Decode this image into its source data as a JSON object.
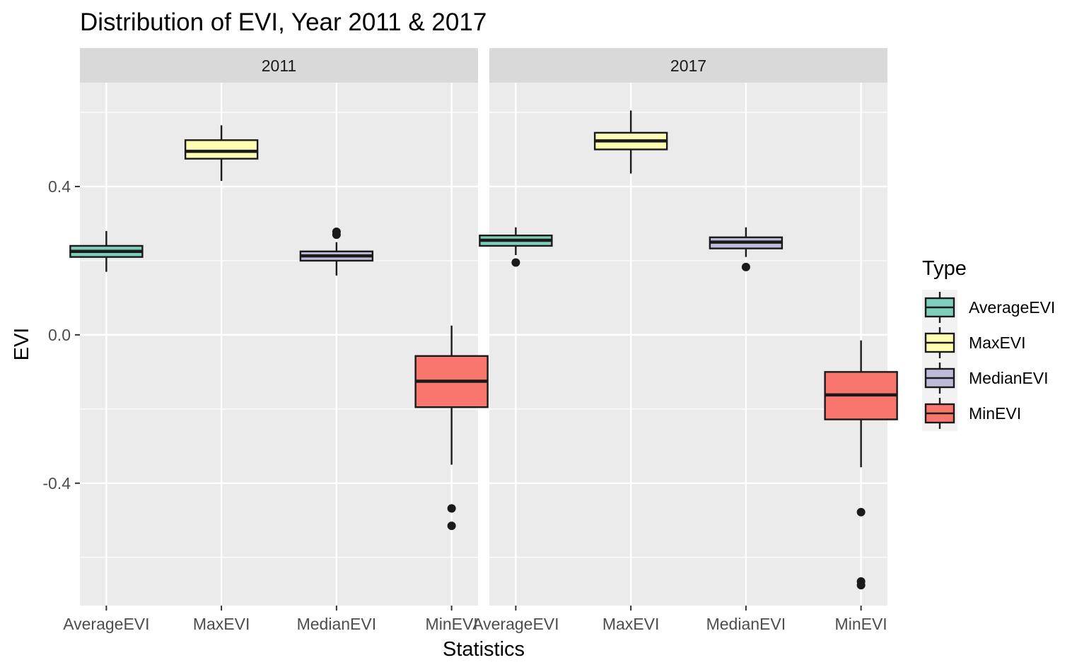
{
  "chart_data": {
    "type": "boxplot",
    "title": "Distribution of EVI, Year 2011 & 2017",
    "xlabel": "Statistics",
    "ylabel": "EVI",
    "ylim": [
      -0.73,
      0.68
    ],
    "yticks": [
      -0.4,
      0.0,
      0.4
    ],
    "ytick_labels": [
      "-0.4",
      "0.0",
      "0.4"
    ],
    "grid": true,
    "legend": {
      "title": "Type",
      "position": "right",
      "entries": [
        "AverageEVI",
        "MaxEVI",
        "MedianEVI",
        "MinEVI"
      ]
    },
    "categories": [
      "AverageEVI",
      "MaxEVI",
      "MedianEVI",
      "MinEVI"
    ],
    "colors": {
      "AverageEVI": "#7fcdbb",
      "MaxEVI": "#ffffb3",
      "MedianEVI": "#bebada",
      "MinEVI": "#f8766d"
    },
    "facets": [
      {
        "label": "2011",
        "boxes": [
          {
            "category": "AverageEVI",
            "lower_whisker": 0.17,
            "q1": 0.21,
            "median": 0.225,
            "q3": 0.24,
            "upper_whisker": 0.28,
            "outliers": []
          },
          {
            "category": "MaxEVI",
            "lower_whisker": 0.415,
            "q1": 0.475,
            "median": 0.495,
            "q3": 0.525,
            "upper_whisker": 0.565,
            "outliers": []
          },
          {
            "category": "MedianEVI",
            "lower_whisker": 0.16,
            "q1": 0.2,
            "median": 0.213,
            "q3": 0.225,
            "upper_whisker": 0.25,
            "outliers": [
              0.27,
              0.278
            ]
          },
          {
            "category": "MinEVI",
            "lower_whisker": -0.35,
            "q1": -0.195,
            "median": -0.125,
            "q3": -0.057,
            "upper_whisker": 0.025,
            "outliers": [
              -0.468,
              -0.515
            ]
          }
        ]
      },
      {
        "label": "2017",
        "boxes": [
          {
            "category": "AverageEVI",
            "lower_whisker": 0.215,
            "q1": 0.24,
            "median": 0.255,
            "q3": 0.268,
            "upper_whisker": 0.29,
            "outliers": [
              0.195
            ]
          },
          {
            "category": "MaxEVI",
            "lower_whisker": 0.435,
            "q1": 0.5,
            "median": 0.523,
            "q3": 0.545,
            "upper_whisker": 0.605,
            "outliers": []
          },
          {
            "category": "MedianEVI",
            "lower_whisker": 0.21,
            "q1": 0.233,
            "median": 0.25,
            "q3": 0.263,
            "upper_whisker": 0.29,
            "outliers": [
              0.183
            ]
          },
          {
            "category": "MinEVI",
            "lower_whisker": -0.357,
            "q1": -0.228,
            "median": -0.162,
            "q3": -0.1,
            "upper_whisker": -0.015,
            "outliers": [
              -0.478,
              -0.665,
              -0.675
            ]
          }
        ]
      }
    ]
  }
}
